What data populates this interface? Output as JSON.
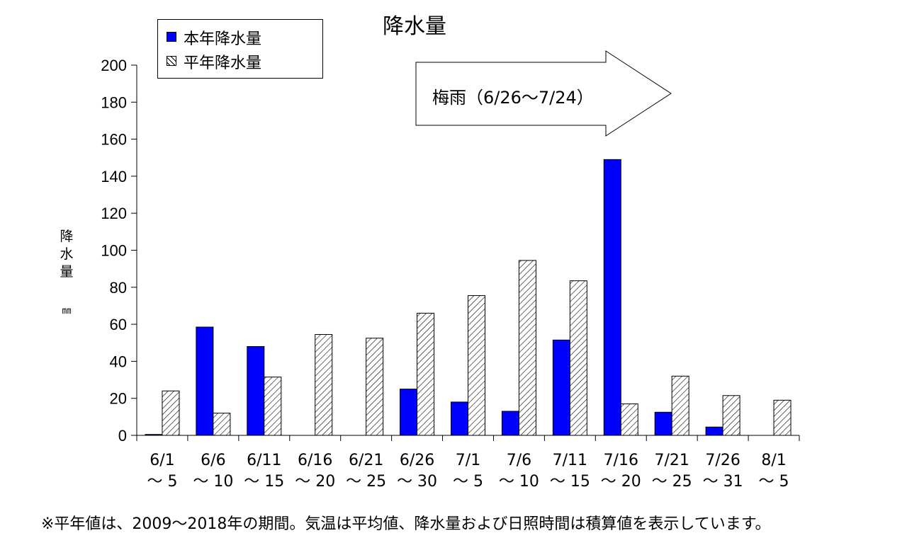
{
  "chart_data": {
    "type": "bar",
    "title": "降水量",
    "ylabel": "降\n水\n量",
    "yunit": "㎜",
    "ylim": [
      0,
      200
    ],
    "yticks": [
      0,
      20,
      40,
      60,
      80,
      100,
      120,
      140,
      160,
      180,
      200
    ],
    "categories": [
      [
        "6/1",
        "～ 5"
      ],
      [
        "6/6",
        "～ 10"
      ],
      [
        "6/11",
        "～ 15"
      ],
      [
        "6/16",
        "～ 20"
      ],
      [
        "6/21",
        "～ 25"
      ],
      [
        "6/26",
        "～ 30"
      ],
      [
        "7/1",
        "～ 5"
      ],
      [
        "7/6",
        "～ 10"
      ],
      [
        "7/11",
        "～ 15"
      ],
      [
        "7/16",
        "～ 20"
      ],
      [
        "7/21",
        "～ 25"
      ],
      [
        "7/26",
        "～ 31"
      ],
      [
        "8/1",
        "～ 5"
      ]
    ],
    "series": [
      {
        "name": "本年降水量",
        "color": "#0000ff",
        "pattern": "solid",
        "values": [
          0.5,
          58.5,
          48,
          0,
          0,
          25,
          18,
          13,
          51.5,
          149,
          12.5,
          4.5,
          0
        ]
      },
      {
        "name": "平年降水量",
        "color": "#ffffff",
        "pattern": "hatch",
        "values": [
          24,
          12,
          31.5,
          54.5,
          52.5,
          66,
          75.5,
          94.5,
          83.5,
          17,
          32,
          21.5,
          19
        ]
      }
    ],
    "grid": false,
    "legend": "top-left",
    "annotation": "梅雨（6/26～7/24）"
  },
  "footnote": "※平年値は、2009～2018年の期間。気温は平均値、降水量および日照時間は積算値を表示しています。"
}
